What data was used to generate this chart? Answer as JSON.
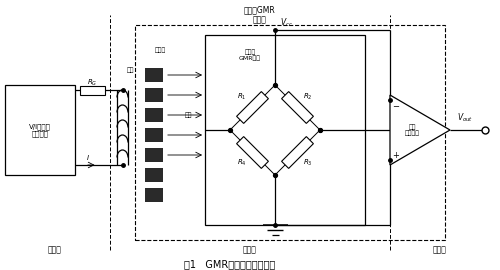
{
  "title": "图1   GMR隔离放大器原理图",
  "bg_color": "#ffffff",
  "fig_width": 5.0,
  "fig_height": 2.7,
  "dpi": 100,
  "top_label": "自旋阀GMR\n隔离器",
  "vcc_label": "$V_{cc}$",
  "vout_label": "$V_{out}$",
  "input_box_label": "V/I放大及\n转换电路",
  "receive_box_label": "接收\n放大电路",
  "rg_label": "$R_G$",
  "r1_label": "$R_1$",
  "r2_label": "$R_2$",
  "r3_label": "$R_3$",
  "r4_label": "$R_4$",
  "i_label": "$I$",
  "coil_label": "线圈",
  "barrier_label": "隔离栅",
  "field_label": "磁场",
  "gmr_bridge_label": "自旋阀\nGMR电桥",
  "input_stage_label": "输入级",
  "isolation_stage_label": "隔离级",
  "output_stage_label": "输出级",
  "line_color": "#000000",
  "barrier_fill": "#2a2a2a"
}
